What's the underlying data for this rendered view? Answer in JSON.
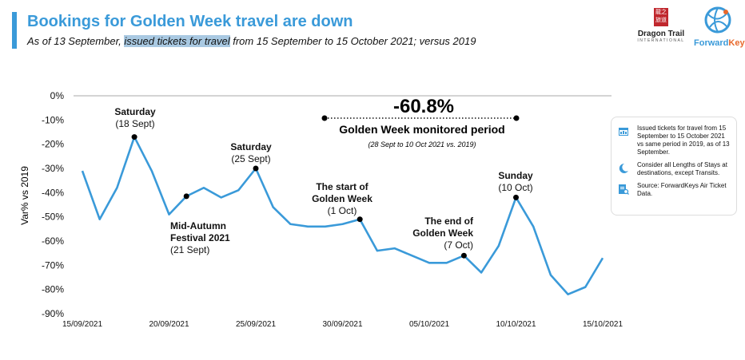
{
  "header": {
    "title": "Bookings for Golden Week travel are down",
    "subtitle_pre": "As of 13 September, ",
    "subtitle_highlight": "issued tickets for travel",
    "subtitle_post": " from 15 September to 15 October 2021; versus 2019"
  },
  "logos": {
    "dragon_trail": {
      "seal": "龍之旅道",
      "name": "Dragon Trail",
      "sub": "INTERNATIONAL"
    },
    "forwardkeys": {
      "name_a": "Forward",
      "name_b": "Keys"
    }
  },
  "colors": {
    "accent": "#3a9ad9",
    "line": "#3a9ad9",
    "grid": "#aaaaaa"
  },
  "headline": {
    "value": "-60.8%",
    "period": "Golden Week monitored period",
    "period_sub": "(28 Sept to 10 Oct 2021 vs. 2019)"
  },
  "annotations": [
    {
      "bold": "Saturday",
      "sub": "(18 Sept)"
    },
    {
      "bold": "Mid-Autumn",
      "bold2": "Festival 2021",
      "sub": "(21 Sept)"
    },
    {
      "bold": "Saturday",
      "sub": "(25 Sept)"
    },
    {
      "bold": "The start of",
      "bold2": "Golden Week",
      "sub": "(1 Oct)"
    },
    {
      "bold": "The end of",
      "bold2": "Golden Week",
      "sub": "(7 Oct)"
    },
    {
      "bold": "Sunday",
      "sub": "(10 Oct)"
    }
  ],
  "legend": [
    {
      "icon": "calendar-icon",
      "text": "Issued tickets for travel from 15 September to 15 October 2021 vs same period in 2019, as of 13 September."
    },
    {
      "icon": "moon-icon",
      "text": "Consider all Lengths of Stays at destinations, except Transits."
    },
    {
      "icon": "document-search-icon",
      "text": "Source: ForwardKeys Air Ticket Data."
    }
  ],
  "chart_data": {
    "type": "line",
    "title": "Bookings for Golden Week travel are down",
    "xlabel": "",
    "ylabel": "Var% vs 2019",
    "ylim": [
      -90,
      0
    ],
    "yticks": [
      "0%",
      "-10%",
      "-20%",
      "-30%",
      "-40%",
      "-50%",
      "-60%",
      "-70%",
      "-80%",
      "-90%"
    ],
    "xticks": [
      "15/09/2021",
      "20/09/2021",
      "25/09/2021",
      "30/09/2021",
      "05/10/2021",
      "10/10/2021",
      "15/10/2021"
    ],
    "grid": false,
    "x": [
      "15/09",
      "16/09",
      "17/09",
      "18/09",
      "19/09",
      "20/09",
      "21/09",
      "22/09",
      "23/09",
      "24/09",
      "25/09",
      "26/09",
      "27/09",
      "28/09",
      "29/09",
      "30/09",
      "01/10",
      "02/10",
      "03/10",
      "04/10",
      "05/10",
      "06/10",
      "07/10",
      "08/10",
      "09/10",
      "10/10",
      "11/10",
      "12/10",
      "13/10",
      "14/10",
      "15/10"
    ],
    "series": [
      {
        "name": "Var% vs 2019",
        "values": [
          -31,
          -51,
          -38,
          -17,
          -31,
          -49,
          -41.5,
          -38,
          -42,
          -39,
          -30,
          -46,
          -53,
          -54,
          -54,
          -53,
          -51,
          -64,
          -63,
          -66,
          -69,
          -69,
          -66,
          -73,
          -62,
          -42,
          -54,
          -74,
          -82,
          -79,
          -67
        ]
      }
    ],
    "marked_points": [
      3,
      6,
      10,
      16,
      22,
      25
    ],
    "golden_week_change": -60.8
  }
}
